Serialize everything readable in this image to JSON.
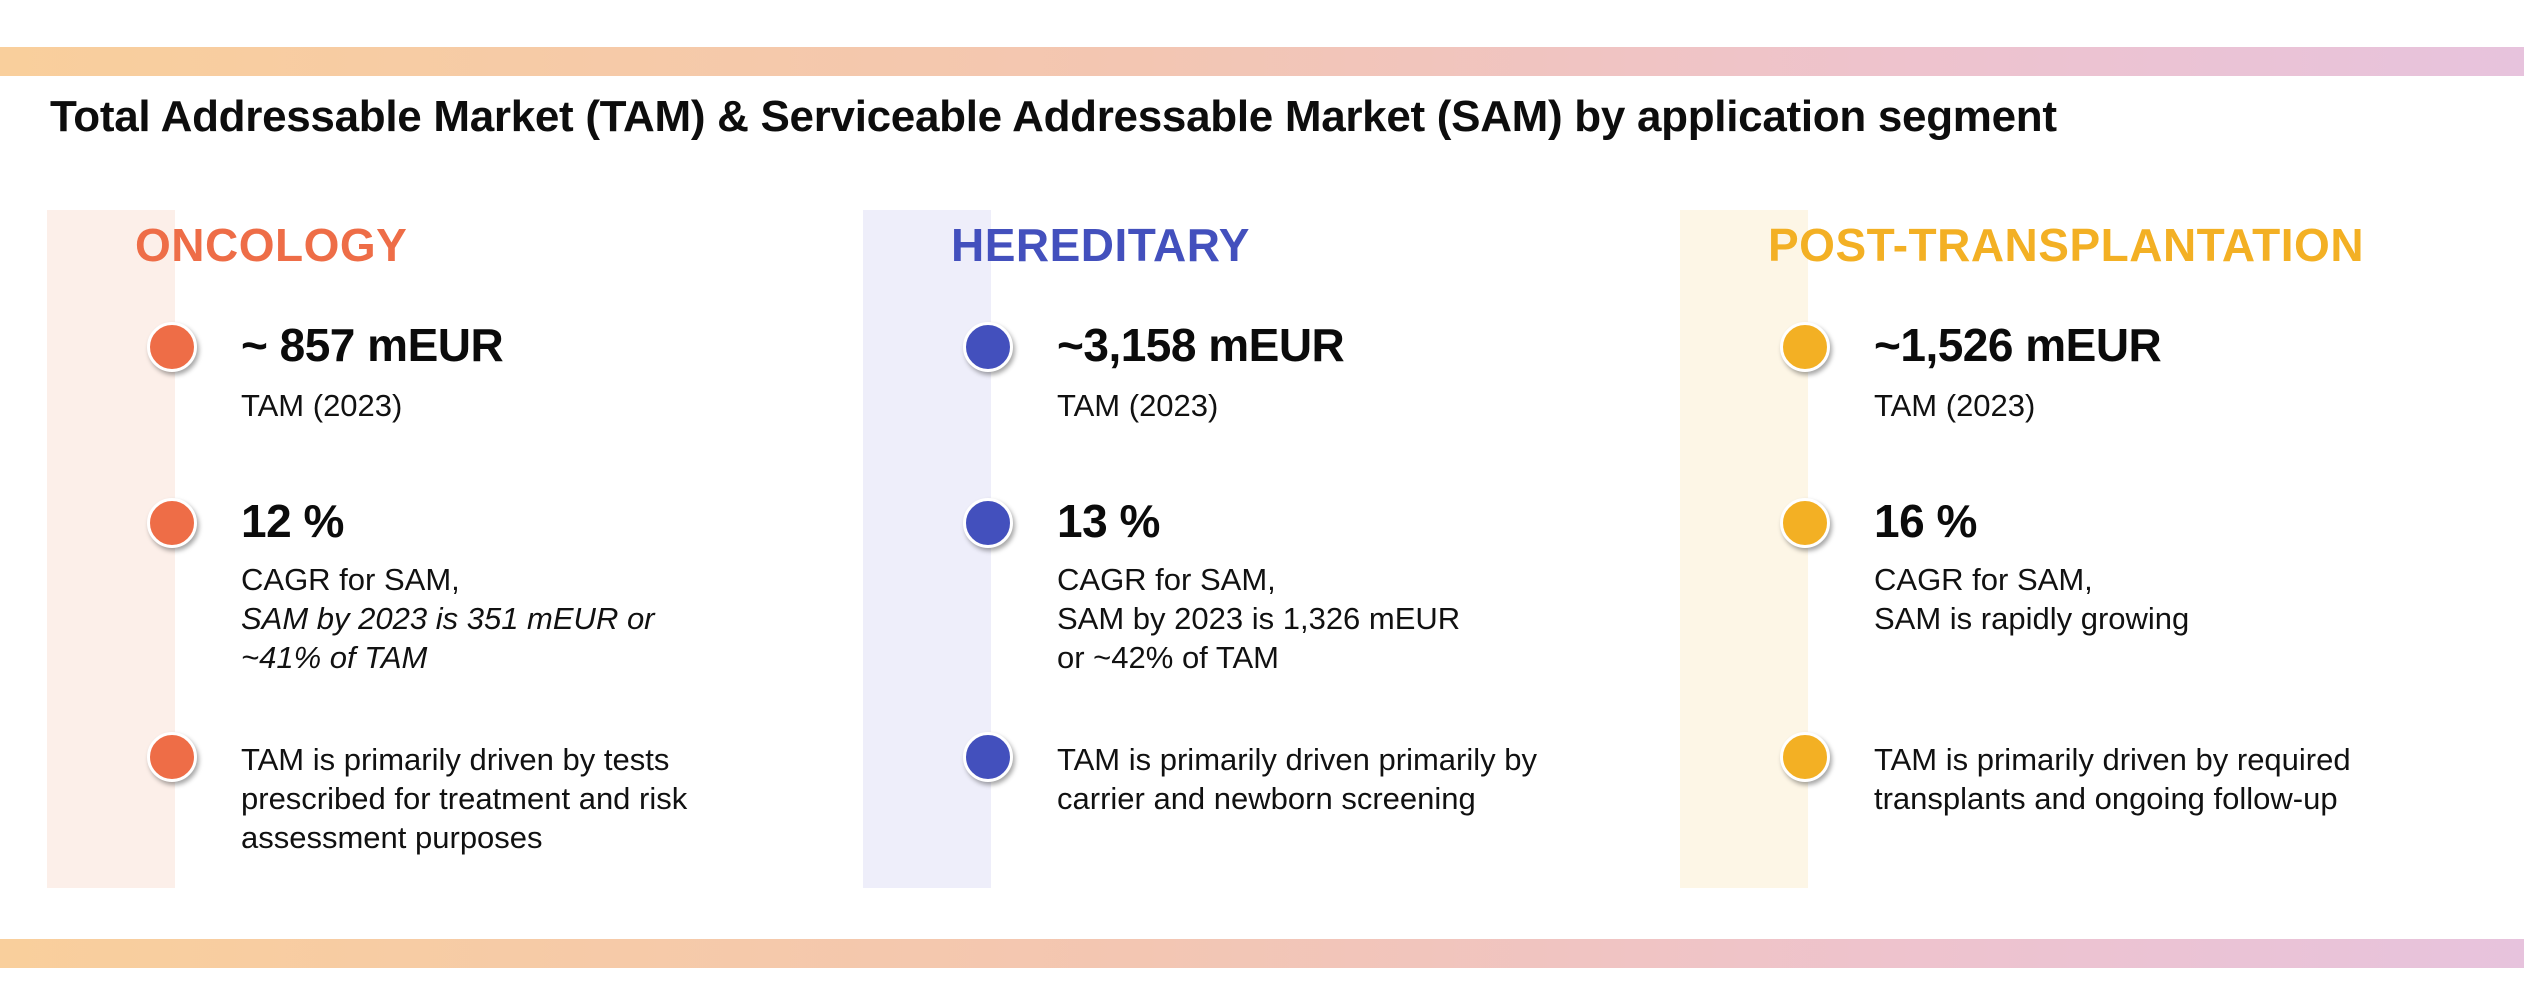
{
  "title": "Total Addressable Market (TAM) & Serviceable Addressable Market (SAM) by application segment",
  "colors": {
    "oncology": "#ee6d47",
    "oncology_bg": "#fcefe9",
    "hereditary": "#4350bd",
    "hereditary_bg": "#eeeefa",
    "post_transplantation": "#f3b024",
    "post_transplantation_bg": "#fdf6e6"
  },
  "segments": [
    {
      "heading": "ONCOLOGY",
      "tam_value": "~ 857 mEUR",
      "tam_label": "TAM (2023)",
      "cagr_value": "12 %",
      "cagr_lines": [
        "CAGR for SAM,",
        "SAM by 2023 is 351 mEUR or",
        "~41% of TAM"
      ],
      "driver_lines": [
        "TAM is primarily driven by tests",
        "prescribed for treatment and risk",
        "assessment purposes"
      ]
    },
    {
      "heading": "HEREDITARY",
      "tam_value": "~3,158 mEUR",
      "tam_label": "TAM (2023)",
      "cagr_value": "13 %",
      "cagr_lines": [
        "CAGR for SAM,",
        "SAM by 2023 is 1,326 mEUR",
        "or ~42% of TAM"
      ],
      "driver_lines": [
        "TAM is primarily driven primarily by",
        "carrier and newborn screening"
      ]
    },
    {
      "heading": "POST-TRANSPLANTATION",
      "tam_value": "~1,526 mEUR",
      "tam_label": "TAM (2023)",
      "cagr_value": "16 %",
      "cagr_lines": [
        "CAGR for SAM,",
        "SAM is rapidly growing"
      ],
      "driver_lines": [
        "TAM is primarily driven by required",
        "transplants and ongoing follow-up"
      ]
    }
  ]
}
